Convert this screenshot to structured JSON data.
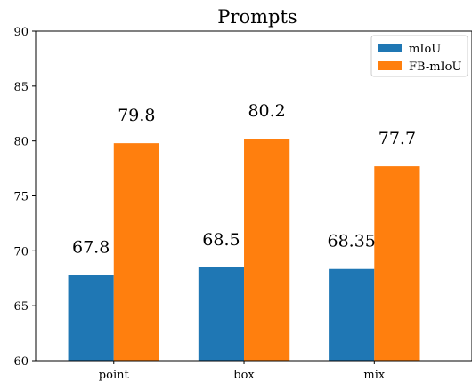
{
  "chart_data": {
    "type": "bar",
    "title": "Prompts",
    "xlabel": "",
    "ylabel": "",
    "categories": [
      "point",
      "box",
      "mix"
    ],
    "series": [
      {
        "name": "mIoU",
        "values": [
          67.8,
          68.5,
          68.35
        ],
        "labels": [
          "67.8",
          "68.5",
          "68.35"
        ],
        "color": "#1f77b4"
      },
      {
        "name": "FB-mIoU",
        "values": [
          79.8,
          80.2,
          77.7
        ],
        "labels": [
          "79.8",
          "80.2",
          "77.7"
        ],
        "color": "#ff7f0e"
      }
    ],
    "ylim": [
      60,
      90
    ],
    "yticks": [
      "60",
      "65",
      "70",
      "75",
      "80",
      "85",
      "90"
    ],
    "grid": false,
    "legend": "top-right"
  }
}
